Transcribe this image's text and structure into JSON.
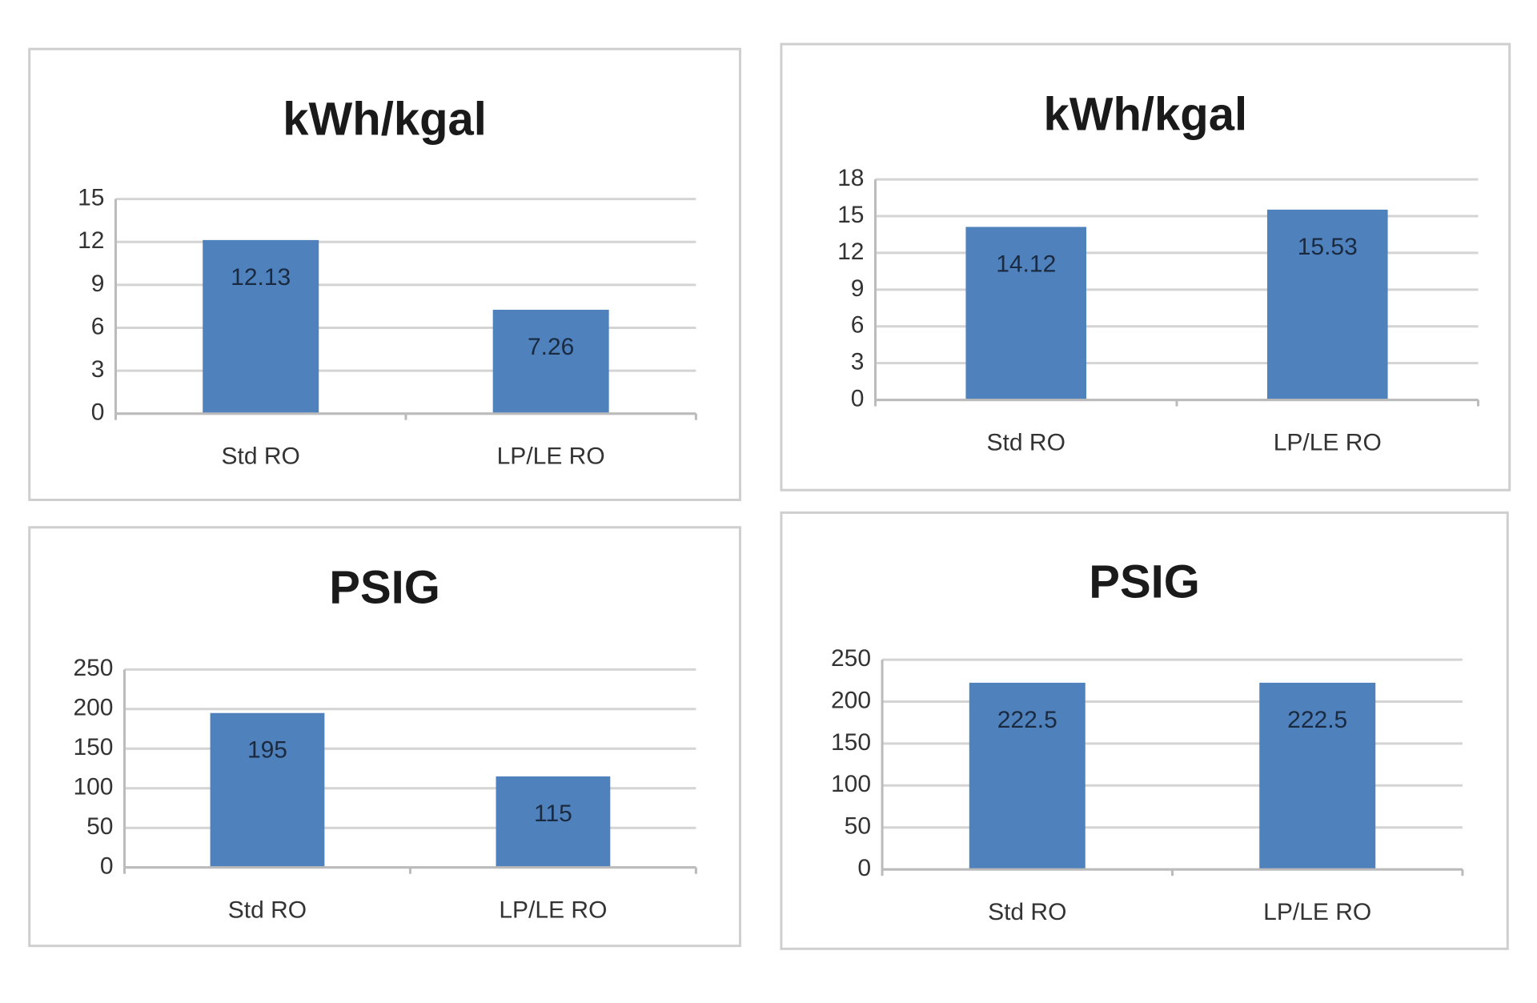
{
  "chart_data": [
    {
      "type": "bar",
      "title": "kWh/kgal",
      "categories": [
        "Std RO",
        "LP/LE RO"
      ],
      "values": [
        12.13,
        7.26
      ],
      "color": "#4f81bd",
      "ylim": [
        0,
        15
      ],
      "yticks": [
        0,
        3,
        6,
        9,
        12,
        15
      ],
      "grid": true
    },
    {
      "type": "bar",
      "title": "kWh/kgal",
      "categories": [
        "Std RO",
        "LP/LE RO"
      ],
      "values": [
        14.12,
        15.53
      ],
      "color": "#4f81bd",
      "ylim": [
        0,
        18
      ],
      "yticks": [
        0,
        3,
        6,
        9,
        12,
        15,
        18
      ],
      "grid": true
    },
    {
      "type": "bar",
      "title": "PSIG",
      "categories": [
        "Std RO",
        "LP/LE RO"
      ],
      "values": [
        195,
        115
      ],
      "color": "#4f81bd",
      "ylim": [
        0,
        250
      ],
      "yticks": [
        0,
        50,
        100,
        150,
        200,
        250
      ],
      "grid": true
    },
    {
      "type": "bar",
      "title": "PSIG",
      "categories": [
        "Std RO",
        "LP/LE RO"
      ],
      "values": [
        222.5,
        222.5
      ],
      "color": "#4f81bd",
      "ylim": [
        0,
        250
      ],
      "yticks": [
        0,
        50,
        100,
        150,
        200,
        250
      ],
      "grid": true
    }
  ]
}
